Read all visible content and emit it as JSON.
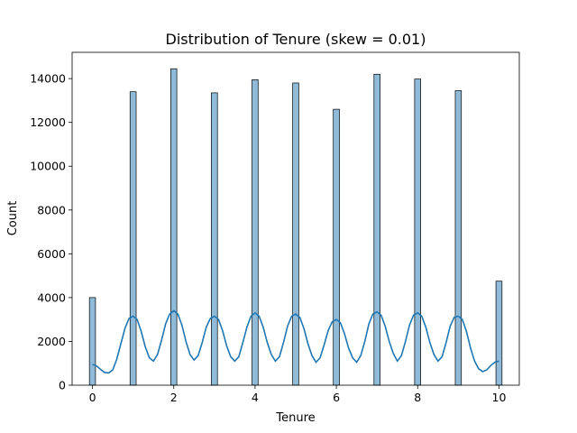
{
  "chart_data": {
    "type": "bar",
    "title": "Distribution of Tenure (skew = 0.01)",
    "xlabel": "Tenure",
    "ylabel": "Count",
    "xlim": [
      -0.5,
      10.5
    ],
    "ylim": [
      0,
      15200
    ],
    "xticks": [
      0,
      2,
      4,
      6,
      8,
      10
    ],
    "yticks": [
      0,
      2000,
      4000,
      6000,
      8000,
      10000,
      12000,
      14000
    ],
    "bin_width": 0.15,
    "categories": [
      0,
      1,
      2,
      3,
      4,
      5,
      6,
      7,
      8,
      9,
      10
    ],
    "values": [
      4000,
      13400,
      14450,
      13350,
      13950,
      13800,
      12600,
      14200,
      13980,
      13450,
      4750
    ],
    "kde": {
      "x": [
        0,
        0.1,
        0.2,
        0.3,
        0.4,
        0.5,
        0.6,
        0.7,
        0.8,
        0.9,
        1.0,
        1.1,
        1.2,
        1.3,
        1.4,
        1.5,
        1.6,
        1.7,
        1.8,
        1.9,
        2.0,
        2.1,
        2.2,
        2.3,
        2.4,
        2.5,
        2.6,
        2.7,
        2.8,
        2.9,
        3.0,
        3.1,
        3.2,
        3.3,
        3.4,
        3.5,
        3.6,
        3.7,
        3.8,
        3.9,
        4.0,
        4.1,
        4.2,
        4.3,
        4.4,
        4.5,
        4.6,
        4.7,
        4.8,
        4.9,
        5.0,
        5.1,
        5.2,
        5.3,
        5.4,
        5.5,
        5.6,
        5.7,
        5.8,
        5.9,
        6.0,
        6.1,
        6.2,
        6.3,
        6.4,
        6.5,
        6.6,
        6.7,
        6.8,
        6.9,
        7.0,
        7.1,
        7.2,
        7.3,
        7.4,
        7.5,
        7.6,
        7.7,
        7.8,
        7.9,
        8.0,
        8.1,
        8.2,
        8.3,
        8.4,
        8.5,
        8.6,
        8.7,
        8.8,
        8.9,
        9.0,
        9.1,
        9.2,
        9.3,
        9.4,
        9.5,
        9.6,
        9.7,
        9.8,
        9.9,
        10.0
      ],
      "y": [
        950,
        880,
        720,
        580,
        560,
        700,
        1200,
        1900,
        2600,
        3050,
        3150,
        3000,
        2450,
        1750,
        1250,
        1100,
        1400,
        2050,
        2800,
        3250,
        3400,
        3250,
        2750,
        2000,
        1400,
        1150,
        1350,
        1950,
        2650,
        3050,
        3150,
        3000,
        2500,
        1800,
        1300,
        1100,
        1300,
        1950,
        2650,
        3150,
        3300,
        3150,
        2650,
        1950,
        1400,
        1100,
        1300,
        1950,
        2700,
        3150,
        3250,
        3100,
        2600,
        1900,
        1350,
        1050,
        1250,
        1850,
        2500,
        2900,
        3000,
        2850,
        2350,
        1700,
        1250,
        1050,
        1350,
        2000,
        2800,
        3250,
        3350,
        3200,
        2700,
        2000,
        1450,
        1100,
        1350,
        2000,
        2750,
        3200,
        3300,
        3150,
        2650,
        1950,
        1400,
        1100,
        1300,
        1950,
        2700,
        3100,
        3150,
        3000,
        2450,
        1700,
        1100,
        750,
        620,
        700,
        900,
        1050,
        1100
      ]
    },
    "bar_color": "#1f77b4",
    "line_color": "#1f77b4",
    "grid": false,
    "legend": false
  }
}
